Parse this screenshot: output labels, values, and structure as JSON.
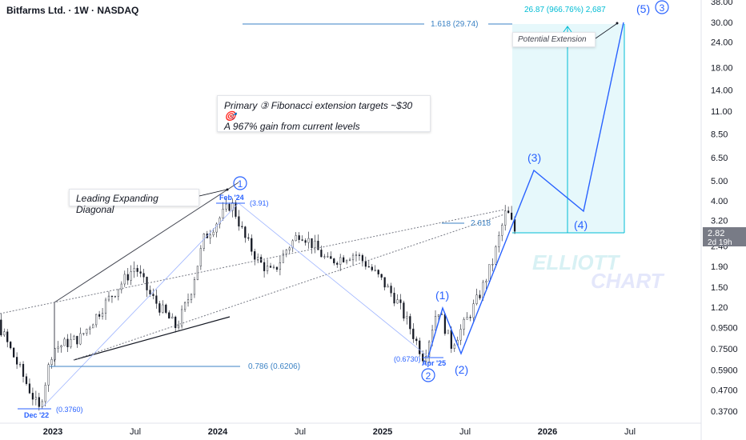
{
  "header": {
    "title": "Bitfarms Ltd. · 1W · NASDAQ"
  },
  "notes": {
    "primary_line1": "Primary ③ Fibonacci extension targets ~$30 🎯",
    "primary_line2": "A 967% gain from current levels",
    "diagonal": "Leading Expanding Diagonal",
    "extension": "Potential Extension"
  },
  "watermark": {
    "line1": "ELLIOTT",
    "line2": "CHART"
  },
  "price_badge": {
    "value": "2.82",
    "countdown": "2d 19h",
    "color": "#787b86"
  },
  "colors": {
    "wave": "#2962ff",
    "fib": "#3b82c4",
    "extension": "#00bcd4",
    "candles": "#131722"
  },
  "chart_data": {
    "type": "candlestick",
    "y_scale": "log",
    "ylim": [
      0.33,
      40
    ],
    "y_ticks": [
      "38.00",
      "30.00",
      "24.00",
      "18.00",
      "14.00",
      "11.00",
      "8.50",
      "6.50",
      "5.00",
      "4.00",
      "3.20",
      "2.40",
      "1.90",
      "1.50",
      "1.20",
      "0.9500",
      "0.7500",
      "0.5900",
      "0.4700",
      "0.3700"
    ],
    "x_ticks": [
      "2023",
      "Jul",
      "2024",
      "Jul",
      "2025",
      "Jul",
      "2026",
      "Jul"
    ],
    "price_points": [
      {
        "t": "2022-06",
        "p": 1.4
      },
      {
        "t": "2022-09",
        "p": 1.0
      },
      {
        "t": "2022-12",
        "p": 0.376
      },
      {
        "t": "2023-01",
        "p": 0.75
      },
      {
        "t": "2023-03",
        "p": 0.85
      },
      {
        "t": "2023-05",
        "p": 1.3
      },
      {
        "t": "2023-07",
        "p": 1.9
      },
      {
        "t": "2023-08",
        "p": 1.4
      },
      {
        "t": "2023-09",
        "p": 1.15
      },
      {
        "t": "2023-10",
        "p": 0.95
      },
      {
        "t": "2023-11",
        "p": 1.4
      },
      {
        "t": "2023-12",
        "p": 2.6
      },
      {
        "t": "2024-02",
        "p": 3.91
      },
      {
        "t": "2024-03",
        "p": 2.6
      },
      {
        "t": "2024-04",
        "p": 2.0
      },
      {
        "t": "2024-05",
        "p": 1.75
      },
      {
        "t": "2024-06",
        "p": 2.3
      },
      {
        "t": "2024-07",
        "p": 2.8
      },
      {
        "t": "2024-08",
        "p": 2.4
      },
      {
        "t": "2024-09",
        "p": 2.0
      },
      {
        "t": "2024-10",
        "p": 2.1
      },
      {
        "t": "2024-11",
        "p": 2.2
      },
      {
        "t": "2024-12",
        "p": 1.9
      },
      {
        "t": "2025-01",
        "p": 1.6
      },
      {
        "t": "2025-02",
        "p": 1.3
      },
      {
        "t": "2025-03",
        "p": 0.95
      },
      {
        "t": "2025-04",
        "p": 0.673
      },
      {
        "t": "2025-05",
        "p": 1.2
      },
      {
        "t": "2025-06",
        "p": 0.78
      },
      {
        "t": "2025-07",
        "p": 1.0
      },
      {
        "t": "2025-08",
        "p": 1.35
      },
      {
        "t": "2025-09",
        "p": 2.0
      },
      {
        "t": "2025-10",
        "p": 3.6
      },
      {
        "t": "2025-10-20",
        "p": 2.82
      }
    ],
    "labels": {
      "dec22": "Dec '22",
      "dec22_val": "(0.3760)",
      "feb24": "Feb '24",
      "feb24_val": "(3.91)",
      "apr25": "Apr '25",
      "apr25_val": "(0.6730)",
      "fib_0786": "0.786 (0.6206)",
      "fib_1618": "1.618 (29.74)",
      "fib_2618": "2.618",
      "target": "26.87 (966.76%) 2,687"
    },
    "waves": {
      "primary": [
        {
          "t": "2022-12",
          "p": 0.376,
          "label": "",
          "circled": true
        },
        {
          "t": "2024-02",
          "p": 3.91,
          "label": "1",
          "circled": true
        },
        {
          "t": "2025-04",
          "p": 0.673,
          "label": "2",
          "circled": true
        },
        {
          "t": "2026-05",
          "p": 30.5,
          "label": "3",
          "circled": true
        }
      ],
      "minor": [
        {
          "t": "2025-04",
          "p": 0.673,
          "label": ""
        },
        {
          "t": "2025-05",
          "p": 1.2,
          "label": "(1)"
        },
        {
          "t": "2025-06",
          "p": 0.73,
          "label": "(2)"
        },
        {
          "t": "2025-11",
          "p": 5.7,
          "label": "(3)"
        },
        {
          "t": "2026-02",
          "p": 3.5,
          "label": "(4)"
        },
        {
          "t": "2026-05",
          "p": 30.5,
          "label": "(5)"
        }
      ]
    }
  }
}
